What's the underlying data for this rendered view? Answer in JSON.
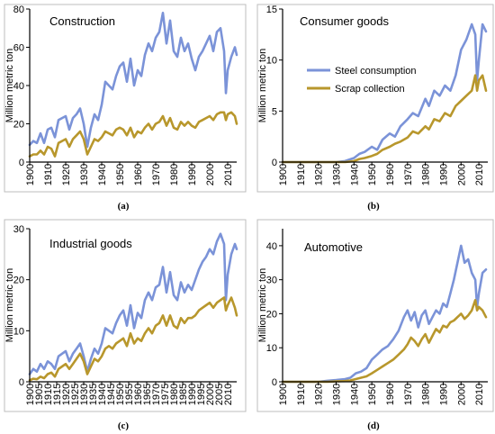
{
  "chart_data": [
    {
      "type": "line",
      "title": "Construction",
      "caption": "(a)",
      "ylabel": "Million metric ton",
      "xlim": [
        1900,
        2015
      ],
      "ylim": [
        0,
        80
      ],
      "xticks": [
        1900,
        1910,
        1920,
        1930,
        1940,
        1950,
        1960,
        1970,
        1980,
        1990,
        2000,
        2010
      ],
      "yticks": [
        0,
        20,
        40,
        60,
        80
      ],
      "x": [
        1900,
        1902,
        1904,
        1906,
        1908,
        1910,
        1912,
        1914,
        1916,
        1918,
        1920,
        1922,
        1924,
        1926,
        1928,
        1930,
        1932,
        1934,
        1936,
        1938,
        1940,
        1942,
        1944,
        1946,
        1948,
        1950,
        1952,
        1954,
        1956,
        1958,
        1960,
        1962,
        1964,
        1966,
        1968,
        1970,
        1972,
        1974,
        1976,
        1978,
        1980,
        1982,
        1984,
        1986,
        1988,
        1990,
        1992,
        1994,
        1996,
        1998,
        2000,
        2002,
        2004,
        2006,
        2008,
        2009,
        2010,
        2012,
        2014,
        2015
      ],
      "series": [
        {
          "name": "Steel consumption",
          "values": [
            9,
            11,
            10,
            15,
            10,
            17,
            18,
            13,
            22,
            23,
            24,
            17,
            23,
            25,
            28,
            20,
            8,
            18,
            25,
            22,
            30,
            42,
            40,
            38,
            45,
            50,
            52,
            42,
            54,
            40,
            48,
            45,
            56,
            62,
            58,
            65,
            68,
            78,
            62,
            74,
            58,
            55,
            65,
            58,
            62,
            54,
            48,
            55,
            58,
            62,
            66,
            58,
            68,
            70,
            58,
            36,
            48,
            55,
            60,
            56
          ]
        },
        {
          "name": "Scrap collection",
          "values": [
            3,
            4,
            4,
            6,
            4,
            8,
            7,
            3,
            10,
            11,
            12,
            8,
            12,
            14,
            16,
            12,
            4,
            8,
            12,
            11,
            13,
            16,
            15,
            14,
            17,
            18,
            17,
            14,
            18,
            13,
            16,
            15,
            18,
            20,
            17,
            20,
            21,
            24,
            19,
            23,
            18,
            17,
            21,
            19,
            21,
            19,
            18,
            21,
            22,
            23,
            24,
            22,
            25,
            26,
            26,
            22,
            25,
            26,
            24,
            20
          ]
        }
      ]
    },
    {
      "type": "line",
      "title": "Consumer goods",
      "caption": "(b)",
      "ylabel": "Million metric ton",
      "xlim": [
        1900,
        2015
      ],
      "ylim": [
        0,
        15
      ],
      "xticks": [
        1900,
        1910,
        1920,
        1930,
        1940,
        1950,
        1960,
        1970,
        1980,
        1990,
        2000,
        2010
      ],
      "yticks": [
        0,
        5,
        10,
        15
      ],
      "legend": "center-right",
      "x": [
        1900,
        1930,
        1935,
        1940,
        1943,
        1946,
        1950,
        1953,
        1956,
        1960,
        1963,
        1966,
        1970,
        1973,
        1976,
        1980,
        1982,
        1985,
        1988,
        1991,
        1994,
        1997,
        2000,
        2003,
        2006,
        2008,
        2009,
        2010,
        2012,
        2014
      ],
      "series": [
        {
          "name": "Steel consumption",
          "values": [
            0,
            0,
            0.1,
            0.4,
            0.8,
            1.0,
            1.5,
            1.2,
            2.2,
            2.8,
            2.5,
            3.5,
            4.2,
            4.8,
            4.5,
            6.2,
            5.5,
            7.0,
            6.5,
            7.5,
            7.0,
            8.5,
            11.0,
            12.0,
            13.5,
            12.5,
            8.0,
            10.0,
            13.5,
            12.8
          ]
        },
        {
          "name": "Scrap collection",
          "values": [
            0,
            0,
            0,
            0.1,
            0.3,
            0.4,
            0.6,
            0.8,
            1.2,
            1.5,
            1.8,
            2.0,
            2.4,
            3.0,
            2.8,
            3.5,
            3.2,
            4.2,
            4.0,
            4.8,
            4.5,
            5.5,
            6.0,
            6.5,
            7.0,
            8.5,
            7.0,
            8.0,
            8.5,
            7.0
          ]
        }
      ]
    },
    {
      "type": "line",
      "title": "Industrial goods",
      "caption": "(c)",
      "ylabel": "Million metric ton",
      "xlim": [
        1900,
        2015
      ],
      "ylim": [
        0,
        30
      ],
      "xticks": [
        1900,
        1905,
        1910,
        1915,
        1920,
        1925,
        1930,
        1935,
        1940,
        1945,
        1950,
        1955,
        1960,
        1965,
        1970,
        1975,
        1980,
        1985,
        1990,
        1995,
        2000,
        2005,
        2010
      ],
      "yticks": [
        0,
        10,
        20,
        30
      ],
      "x": [
        1900,
        1902,
        1904,
        1906,
        1908,
        1910,
        1912,
        1914,
        1916,
        1918,
        1920,
        1922,
        1924,
        1926,
        1928,
        1930,
        1932,
        1934,
        1936,
        1938,
        1940,
        1942,
        1944,
        1946,
        1948,
        1950,
        1952,
        1954,
        1956,
        1958,
        1960,
        1962,
        1964,
        1966,
        1968,
        1970,
        1972,
        1974,
        1976,
        1978,
        1980,
        1982,
        1984,
        1986,
        1988,
        1990,
        1992,
        1994,
        1996,
        1998,
        2000,
        2002,
        2004,
        2006,
        2008,
        2009,
        2010,
        2012,
        2014,
        2015
      ],
      "series": [
        {
          "name": "Steel consumption",
          "values": [
            1.5,
            2.5,
            2.0,
            3.5,
            2.5,
            4.0,
            3.5,
            2.5,
            5.0,
            5.5,
            6.0,
            4.0,
            5.5,
            6.5,
            7.5,
            5.0,
            2.0,
            4.5,
            6.5,
            5.5,
            7.5,
            10.5,
            10.0,
            9.5,
            11.5,
            13.0,
            14.0,
            11.0,
            15.0,
            10.5,
            13.5,
            12.5,
            16.0,
            17.5,
            16.0,
            18.5,
            19.0,
            22.5,
            17.5,
            21.5,
            17.0,
            16.0,
            19.5,
            17.5,
            19.0,
            18.0,
            20.0,
            22.0,
            23.5,
            24.5,
            26.0,
            25.0,
            27.5,
            29.0,
            27.0,
            16.0,
            21.0,
            25.0,
            27.0,
            26.0
          ]
        },
        {
          "name": "Scrap collection",
          "values": [
            0.3,
            0.6,
            0.5,
            1.0,
            0.7,
            1.5,
            1.8,
            1.0,
            2.5,
            3.0,
            3.5,
            2.5,
            3.5,
            4.5,
            5.5,
            4.0,
            1.5,
            3.0,
            4.5,
            4.0,
            5.0,
            6.5,
            7.0,
            6.5,
            7.5,
            8.0,
            8.5,
            7.0,
            9.5,
            7.5,
            8.5,
            8.0,
            9.5,
            10.5,
            9.5,
            11.0,
            11.5,
            13.0,
            11.0,
            13.0,
            11.0,
            10.5,
            12.5,
            11.5,
            12.5,
            12.5,
            13.0,
            14.0,
            14.5,
            15.0,
            15.5,
            14.5,
            15.5,
            16.0,
            16.5,
            14.0,
            15.0,
            16.5,
            14.5,
            13.0
          ]
        }
      ]
    },
    {
      "type": "line",
      "title": "Automotive",
      "caption": "(d)",
      "ylabel": "Million metric ton",
      "xlim": [
        1900,
        2015
      ],
      "ylim": [
        0,
        45
      ],
      "xticks": [
        1900,
        1910,
        1920,
        1930,
        1940,
        1950,
        1960,
        1970,
        1980,
        1990,
        2000,
        2010
      ],
      "yticks": [
        0,
        10,
        20,
        30,
        40
      ],
      "x": [
        1900,
        1920,
        1925,
        1930,
        1935,
        1938,
        1941,
        1944,
        1947,
        1950,
        1953,
        1956,
        1959,
        1962,
        1965,
        1968,
        1970,
        1972,
        1974,
        1976,
        1978,
        1980,
        1982,
        1984,
        1986,
        1988,
        1990,
        1992,
        1994,
        1996,
        1998,
        2000,
        2002,
        2004,
        2006,
        2008,
        2009,
        2010,
        2012,
        2014
      ],
      "series": [
        {
          "name": "Steel consumption",
          "values": [
            0,
            0,
            0.3,
            0.5,
            0.8,
            1.2,
            2.5,
            3.0,
            4.0,
            6.5,
            8.0,
            9.5,
            10.5,
            12.5,
            15.0,
            19.0,
            21.0,
            18.0,
            20.5,
            16.0,
            19.5,
            21.0,
            17.0,
            19.0,
            21.0,
            20.0,
            23.0,
            22.0,
            26.0,
            30.0,
            35.0,
            40.0,
            35.0,
            36.0,
            32.0,
            30.0,
            22.0,
            26.0,
            32.0,
            33.0
          ]
        },
        {
          "name": "Scrap collection",
          "values": [
            0,
            0,
            0,
            0.1,
            0.2,
            0.4,
            0.8,
            1.2,
            1.6,
            2.5,
            3.5,
            4.5,
            5.5,
            6.5,
            8.0,
            9.5,
            11.0,
            13.0,
            12.0,
            10.5,
            12.5,
            14.0,
            11.5,
            13.5,
            15.5,
            14.5,
            16.5,
            16.0,
            17.5,
            18.0,
            19.0,
            20.0,
            18.5,
            19.5,
            21.0,
            24.0,
            21.0,
            22.0,
            21.0,
            19.0
          ]
        }
      ]
    }
  ],
  "colors": {
    "steel": "#7b93d8",
    "scrap": "#b8972c"
  },
  "legend": {
    "steel_label": "Steel consumption",
    "scrap_label": "Scrap collection"
  }
}
